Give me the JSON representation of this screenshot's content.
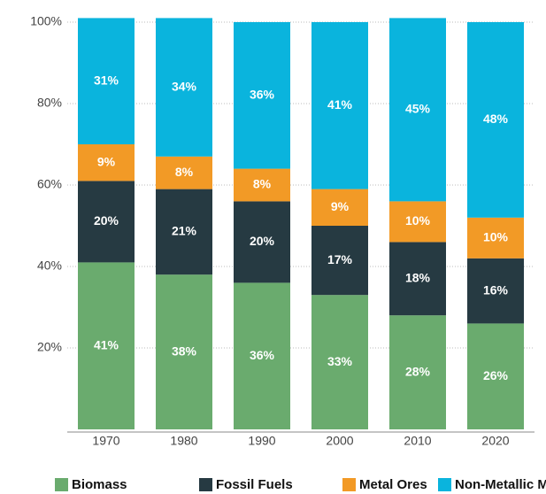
{
  "chart_data": {
    "type": "stacked_bar",
    "categories": [
      "1970",
      "1980",
      "1990",
      "2000",
      "2010",
      "2020"
    ],
    "series": [
      {
        "name": "Biomass",
        "color": "#6aab6e",
        "values": [
          41,
          38,
          36,
          33,
          28,
          26
        ],
        "value_labels": [
          "41%",
          "38%",
          "36%",
          "33%",
          "28%",
          "26%"
        ]
      },
      {
        "name": "Fossil Fuels",
        "color": "#263a42",
        "values": [
          20,
          21,
          20,
          17,
          18,
          16
        ],
        "value_labels": [
          "20%",
          "21%",
          "20%",
          "17%",
          "18%",
          "16%"
        ]
      },
      {
        "name": "Metal Ores",
        "color": "#f29a26",
        "values": [
          9,
          8,
          8,
          9,
          10,
          10
        ],
        "value_labels": [
          "9%",
          "8%",
          "8%",
          "9%",
          "10%",
          "10%"
        ]
      },
      {
        "name": "Non-Metallic Minerals",
        "color": "#0ab4dd",
        "values": [
          31,
          34,
          36,
          41,
          45,
          48
        ],
        "value_labels": [
          "31%",
          "34%",
          "36%",
          "41%",
          "45%",
          "48%"
        ]
      }
    ],
    "ylim": [
      0,
      100
    ],
    "yticks": [
      {
        "value": 20,
        "label": "20%"
      },
      {
        "value": 40,
        "label": "40%"
      },
      {
        "value": 60,
        "label": "60%"
      },
      {
        "value": 80,
        "label": "80%"
      },
      {
        "value": 100,
        "label": "100%"
      }
    ],
    "grid": true,
    "legend": "bottom"
  }
}
